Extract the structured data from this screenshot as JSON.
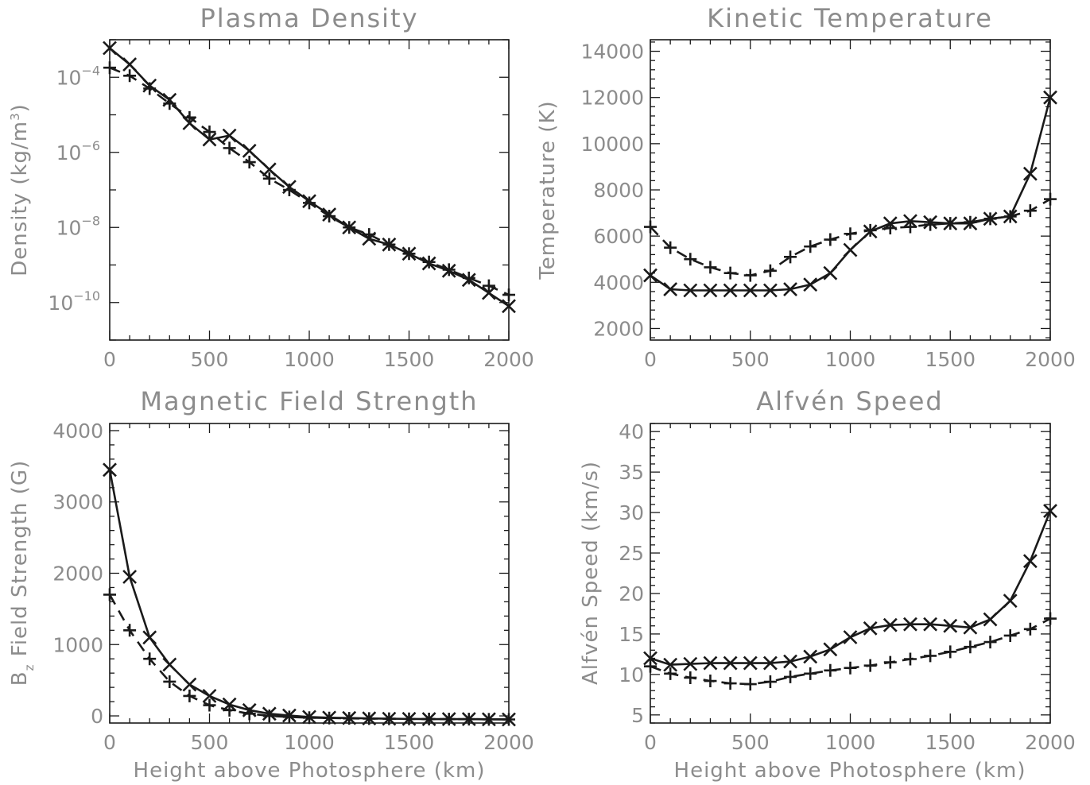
{
  "chart_data": [
    {
      "id": "density",
      "type": "line",
      "title": "Plasma Density",
      "xlabel": "",
      "ylabel": "Density (kg/m³)",
      "ylabel_parts": [
        "Density (kg/m",
        "3",
        ")"
      ],
      "yscale": "log",
      "xlim": [
        0,
        2000
      ],
      "ylim": [
        1e-11,
        0.001
      ],
      "xticks": [
        0,
        500,
        1000,
        1500,
        2000
      ],
      "xtick_labels": [
        "0",
        "500",
        "1000",
        "1500",
        "2000"
      ],
      "yticks": [
        0.0001,
        1e-06,
        1e-08,
        1e-10
      ],
      "ytick_labels": [
        {
          "base": "10",
          "exp": "−4"
        },
        {
          "base": "10",
          "exp": "−6"
        },
        {
          "base": "10",
          "exp": "−8"
        },
        {
          "base": "10",
          "exp": "−10"
        }
      ],
      "grid": false,
      "series": [
        {
          "style": "solid",
          "marker": "x",
          "x": [
            0,
            100,
            200,
            300,
            400,
            500,
            600,
            700,
            800,
            900,
            1000,
            1100,
            1200,
            1300,
            1400,
            1500,
            1600,
            1700,
            1800,
            1900,
            2000
          ],
          "y": [
            0.0006,
            0.00022,
            6e-05,
            2.5e-05,
            6e-06,
            2.2e-06,
            2.8e-06,
            1.1e-06,
            3.5e-07,
            1.2e-07,
            5e-08,
            2.2e-08,
            1e-08,
            5e-09,
            3.5e-09,
            2e-09,
            1.1e-09,
            7e-10,
            4e-10,
            1.8e-10,
            8e-11
          ]
        },
        {
          "style": "dashed",
          "marker": "+",
          "x": [
            0,
            100,
            200,
            300,
            400,
            500,
            600,
            700,
            800,
            900,
            1000,
            1100,
            1200,
            1300,
            1400,
            1500,
            1600,
            1700,
            1800,
            1900,
            2000
          ],
          "y": [
            0.00018,
            0.00011,
            5e-05,
            2e-05,
            8.5e-06,
            3.5e-06,
            1.3e-06,
            5.5e-07,
            2e-07,
            1e-07,
            4.5e-08,
            2e-08,
            1e-08,
            6.5e-09,
            3.5e-09,
            2e-09,
            1.2e-09,
            7.5e-10,
            4.5e-10,
            2.8e-10,
            1.6e-10
          ]
        }
      ]
    },
    {
      "id": "temperature",
      "type": "line",
      "title": "Kinetic Temperature",
      "xlabel": "",
      "ylabel": "Temperature (K)",
      "yscale": "linear",
      "xlim": [
        0,
        2000
      ],
      "ylim": [
        1500,
        14500
      ],
      "xticks": [
        0,
        500,
        1000,
        1500,
        2000
      ],
      "xtick_labels": [
        "0",
        "500",
        "1000",
        "1500",
        "2000"
      ],
      "yticks": [
        2000,
        4000,
        6000,
        8000,
        10000,
        12000,
        14000
      ],
      "ytick_labels": [
        "2000",
        "4000",
        "6000",
        "8000",
        "10000",
        "12000",
        "14000"
      ],
      "grid": false,
      "series": [
        {
          "style": "solid",
          "marker": "x",
          "x": [
            0,
            100,
            200,
            300,
            400,
            500,
            600,
            700,
            800,
            900,
            1000,
            1100,
            1200,
            1300,
            1400,
            1500,
            1600,
            1700,
            1800,
            1900,
            2000
          ],
          "y": [
            4300,
            3700,
            3650,
            3650,
            3650,
            3650,
            3650,
            3700,
            3900,
            4400,
            5400,
            6200,
            6550,
            6650,
            6600,
            6550,
            6550,
            6750,
            6850,
            8700,
            12000
          ]
        },
        {
          "style": "dashed",
          "marker": "+",
          "x": [
            0,
            100,
            200,
            300,
            400,
            500,
            600,
            700,
            800,
            900,
            1000,
            1100,
            1200,
            1300,
            1400,
            1500,
            1600,
            1700,
            1800,
            1900,
            2000
          ],
          "y": [
            6400,
            5500,
            5000,
            4650,
            4400,
            4300,
            4500,
            5100,
            5550,
            5850,
            6100,
            6250,
            6350,
            6400,
            6500,
            6550,
            6600,
            6750,
            6850,
            7100,
            7600
          ]
        }
      ]
    },
    {
      "id": "bfield",
      "type": "line",
      "title": "Magnetic Field Strength",
      "xlabel": "Height above Photosphere (km)",
      "ylabel": "B_z Field Strength (G)",
      "ylabel_parts": [
        "B",
        "z",
        " Field Strength (G)"
      ],
      "yscale": "linear",
      "xlim": [
        0,
        2000
      ],
      "ylim": [
        -100,
        4100
      ],
      "xticks": [
        0,
        500,
        1000,
        1500,
        2000
      ],
      "xtick_labels": [
        "0",
        "500",
        "1000",
        "1500",
        "2000"
      ],
      "yticks": [
        0,
        1000,
        2000,
        3000,
        4000
      ],
      "ytick_labels": [
        "0",
        "1000",
        "2000",
        "3000",
        "4000"
      ],
      "grid": false,
      "series": [
        {
          "style": "solid",
          "marker": "x",
          "x": [
            0,
            100,
            200,
            300,
            400,
            500,
            600,
            700,
            800,
            900,
            1000,
            1100,
            1200,
            1300,
            1400,
            1500,
            1600,
            1700,
            1800,
            1900,
            2000
          ],
          "y": [
            3450,
            1950,
            1100,
            720,
            440,
            280,
            160,
            80,
            30,
            5,
            -15,
            -25,
            -30,
            -35,
            -40,
            -42,
            -45,
            -45,
            -45,
            -48,
            -50
          ]
        },
        {
          "style": "dashed",
          "marker": "+",
          "x": [
            0,
            100,
            200,
            300,
            400,
            500,
            600,
            700,
            800,
            900,
            1000,
            1100,
            1200,
            1300,
            1400,
            1500,
            1600,
            1700,
            1800,
            1900,
            2000
          ],
          "y": [
            1700,
            1200,
            800,
            480,
            280,
            150,
            80,
            30,
            0,
            -15,
            -25,
            -30,
            -35,
            -38,
            -40,
            -42,
            -44,
            -45,
            -46,
            -48,
            -50
          ]
        }
      ]
    },
    {
      "id": "alfven",
      "type": "line",
      "title": "Alfvén Speed",
      "xlabel": "Height above Photosphere (km)",
      "ylabel": "Alfvén Speed (km/s)",
      "yscale": "linear",
      "xlim": [
        0,
        2000
      ],
      "ylim": [
        4,
        41
      ],
      "xticks": [
        0,
        500,
        1000,
        1500,
        2000
      ],
      "xtick_labels": [
        "0",
        "500",
        "1000",
        "1500",
        "2000"
      ],
      "yticks": [
        5,
        10,
        15,
        20,
        25,
        30,
        35,
        40
      ],
      "ytick_labels": [
        "5",
        "10",
        "15",
        "20",
        "25",
        "30",
        "35",
        "40"
      ],
      "grid": false,
      "series": [
        {
          "style": "solid",
          "marker": "x",
          "x": [
            0,
            100,
            200,
            300,
            400,
            500,
            600,
            700,
            800,
            900,
            1000,
            1100,
            1200,
            1300,
            1400,
            1500,
            1600,
            1700,
            1800,
            1900,
            2000
          ],
          "y": [
            12,
            11.2,
            11.3,
            11.4,
            11.4,
            11.4,
            11.4,
            11.6,
            12.2,
            13.1,
            14.6,
            15.7,
            16.1,
            16.2,
            16.2,
            16,
            15.8,
            16.8,
            19.1,
            24,
            30.2
          ]
        },
        {
          "style": "dashed",
          "marker": "+",
          "x": [
            0,
            100,
            200,
            300,
            400,
            500,
            600,
            700,
            800,
            900,
            1000,
            1100,
            1200,
            1300,
            1400,
            1500,
            1600,
            1700,
            1800,
            1900,
            2000
          ],
          "y": [
            11,
            10.1,
            9.6,
            9.2,
            8.9,
            8.8,
            9.1,
            9.7,
            10.1,
            10.5,
            10.8,
            11.1,
            11.5,
            11.9,
            12.3,
            12.8,
            13.4,
            14,
            14.8,
            15.6,
            16.9
          ]
        }
      ]
    }
  ]
}
